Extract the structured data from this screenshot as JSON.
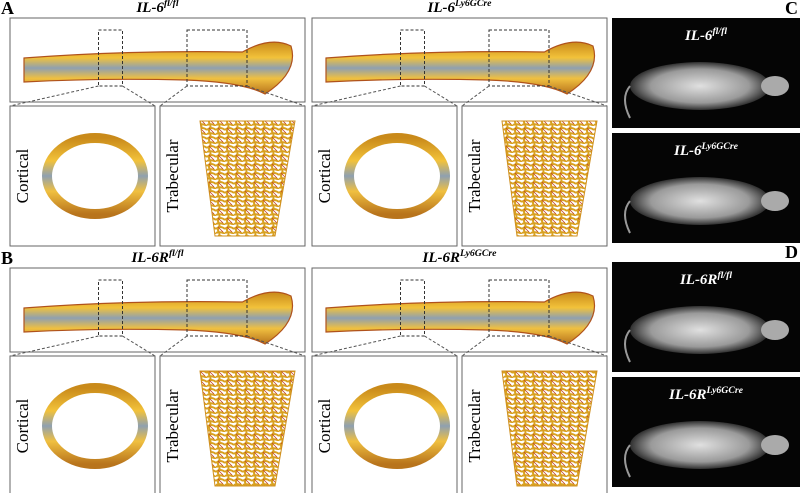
{
  "panels": [
    {
      "letter": "A",
      "groups": [
        {
          "title": {
            "base": "IL-6",
            "sup": "fl/fl"
          },
          "insets": [
            "Cortical",
            "Trabecular"
          ]
        },
        {
          "title": {
            "base": "IL-6",
            "sup": "Ly6GCre"
          },
          "insets": [
            "Cortical",
            "Trabecular"
          ]
        }
      ]
    },
    {
      "letter": "B",
      "groups": [
        {
          "title": {
            "base": "IL-6R",
            "sup": "fl/fl"
          },
          "insets": [
            "Cortical",
            "Trabecular"
          ]
        },
        {
          "title": {
            "base": "IL-6R",
            "sup": "Ly6GCre"
          },
          "insets": [
            "Cortical",
            "Trabecular"
          ]
        }
      ]
    }
  ],
  "xray": [
    {
      "letter": "C",
      "images": [
        {
          "base": "IL-6",
          "sup": "fl/fl"
        },
        {
          "base": "IL-6",
          "sup": "Ly6GCre"
        }
      ]
    },
    {
      "letter": "D",
      "images": [
        {
          "base": "IL-6R",
          "sup": "fl/fl"
        },
        {
          "base": "IL-6R",
          "sup": "Ly6GCre"
        }
      ]
    }
  ]
}
